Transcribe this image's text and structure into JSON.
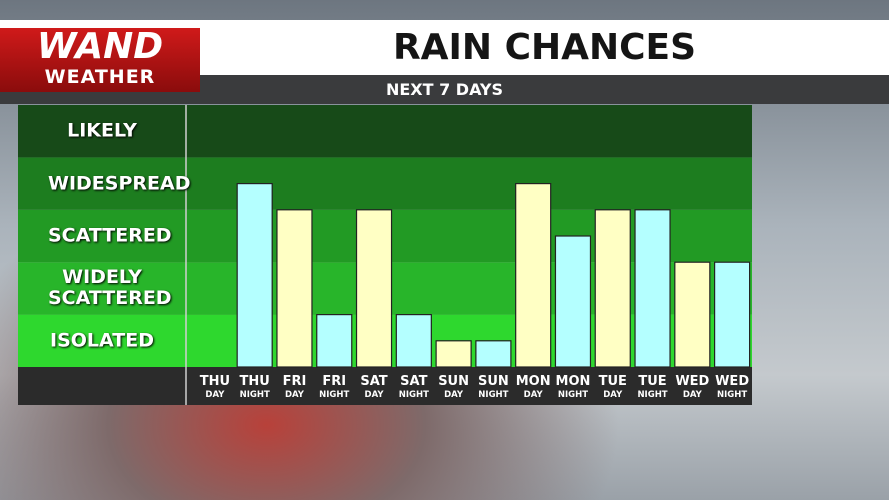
{
  "header": {
    "logo_top": "WAND",
    "logo_bottom": "WEATHER"
  },
  "chart_data": {
    "type": "bar",
    "title": "RAIN CHANCES",
    "subtitle": "NEXT 7 DAYS",
    "categories": [
      "THU",
      "THU",
      "FRI",
      "FRI",
      "SAT",
      "SAT",
      "SUN",
      "SUN",
      "MON",
      "MON",
      "TUE",
      "TUE",
      "WED",
      "WED"
    ],
    "periods": [
      "DAY",
      "NIGHT",
      "DAY",
      "NIGHT",
      "DAY",
      "NIGHT",
      "DAY",
      "NIGHT",
      "DAY",
      "NIGHT",
      "DAY",
      "NIGHT",
      "DAY",
      "NIGHT"
    ],
    "values": [
      0,
      3.5,
      3,
      1,
      3,
      1,
      0.5,
      0.5,
      3.5,
      2.5,
      3,
      3,
      2,
      2
    ],
    "colors": [
      "#ffffc4",
      "#b4ffff",
      "#ffffc4",
      "#b4ffff",
      "#ffffc4",
      "#b4ffff",
      "#ffffc4",
      "#b4ffff",
      "#ffffc4",
      "#b4ffff",
      "#ffffc4",
      "#b4ffff",
      "#ffffc4",
      "#b4ffff"
    ],
    "ylim": [
      0,
      5
    ],
    "yticks": [
      {
        "value": 0.5,
        "label": "ISOLATED"
      },
      {
        "value": 1.5,
        "label": "WIDELY SCATTERED"
      },
      {
        "value": 2.5,
        "label": "SCATTERED"
      },
      {
        "value": 3.5,
        "label": "WIDESPREAD"
      },
      {
        "value": 4.5,
        "label": "LIKELY"
      }
    ],
    "band_colors": [
      "#2ed82e",
      "#28b52a",
      "#229a24",
      "#1d7d1f",
      "#174a18"
    ]
  }
}
